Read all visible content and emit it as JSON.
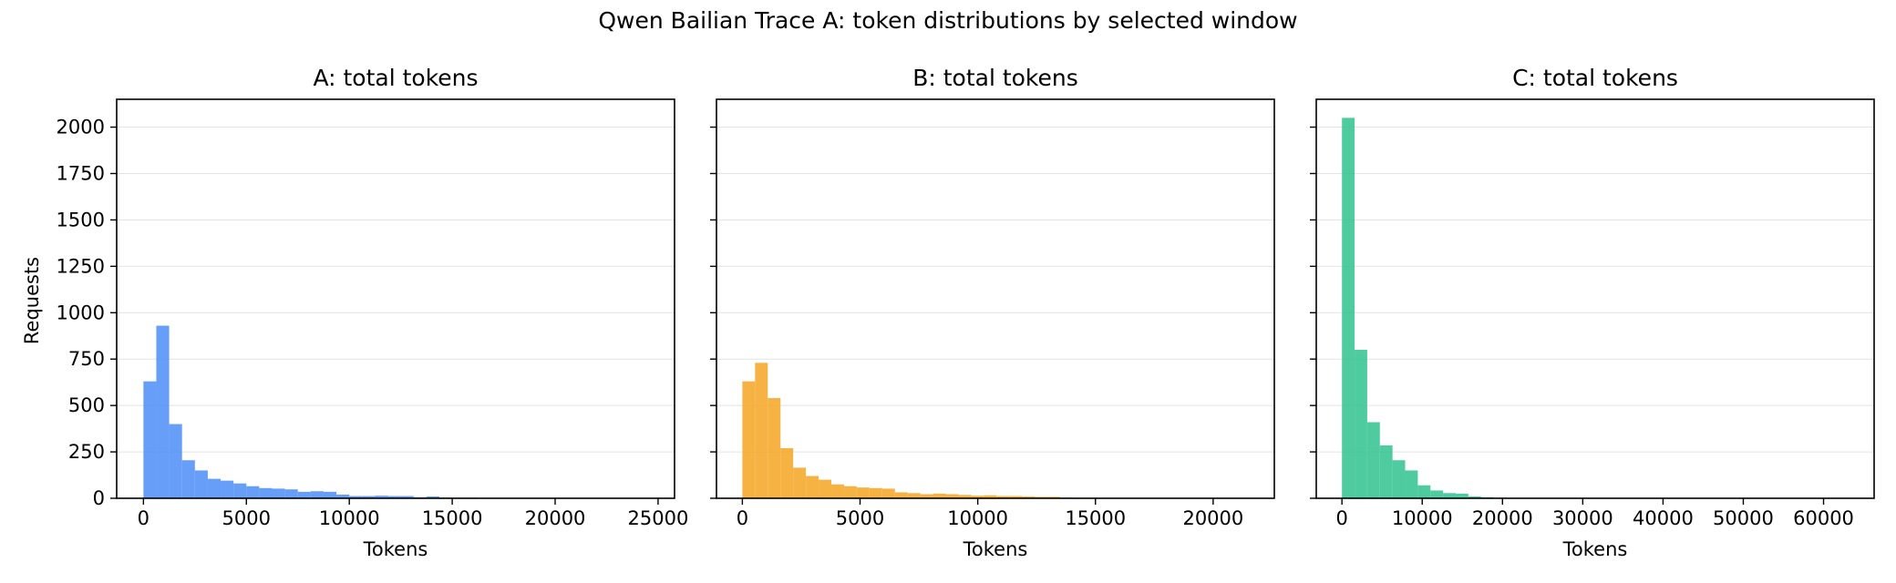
{
  "figure": {
    "title": "Qwen Bailian Trace A: token distributions by selected window",
    "ylabel": "Requests"
  },
  "chart_data": [
    {
      "type": "bar",
      "title": "A: total tokens",
      "xlabel": "Tokens",
      "ylabel": "Requests",
      "color": "#4C8DF6",
      "xlim": [
        -1300,
        25800
      ],
      "ylim": [
        0,
        2150
      ],
      "x_ticks": [
        0,
        5000,
        10000,
        15000,
        20000,
        25000
      ],
      "y_ticks": [
        0,
        250,
        500,
        750,
        1000,
        1250,
        1500,
        1750,
        2000
      ],
      "grid": "horizontal",
      "bin_width": 625,
      "bin_starts": [
        0,
        625,
        1250,
        1875,
        2500,
        3125,
        3750,
        4375,
        5000,
        5625,
        6250,
        6875,
        7500,
        8125,
        8750,
        9375,
        10000,
        10625,
        11250,
        11875,
        12500,
        13125,
        13750,
        14375,
        15000,
        15625,
        16250,
        16875,
        17500,
        18125,
        18750,
        19375,
        20000,
        20625,
        21250,
        21875,
        22500,
        23125,
        23750,
        24375
      ],
      "values": [
        630,
        930,
        400,
        205,
        150,
        105,
        95,
        80,
        65,
        55,
        52,
        48,
        35,
        38,
        35,
        20,
        12,
        12,
        14,
        12,
        12,
        6,
        10,
        4,
        3,
        3,
        2,
        2,
        2,
        2,
        1,
        2,
        1,
        1,
        1,
        1,
        1,
        1,
        1,
        1
      ]
    },
    {
      "type": "bar",
      "title": "B: total tokens",
      "xlabel": "Tokens",
      "color": "#F4A623",
      "xlim": [
        -1100,
        22600
      ],
      "ylim": [
        0,
        2150
      ],
      "x_ticks": [
        0,
        5000,
        10000,
        15000,
        20000
      ],
      "y_ticks": [
        0,
        250,
        500,
        750,
        1000,
        1250,
        1500,
        1750,
        2000
      ],
      "grid": "horizontal",
      "bin_width": 540,
      "bin_starts": [
        0,
        540,
        1080,
        1620,
        2160,
        2700,
        3240,
        3780,
        4320,
        4860,
        5400,
        5940,
        6480,
        7020,
        7560,
        8100,
        8640,
        9180,
        9720,
        10260,
        10800,
        11340,
        11880,
        12420,
        12960,
        13500,
        14040,
        14580,
        15120,
        15660,
        16200,
        16740,
        17280,
        17820,
        18360,
        18900,
        19440,
        19980,
        20520,
        21060
      ],
      "values": [
        630,
        730,
        540,
        270,
        165,
        120,
        100,
        75,
        65,
        58,
        55,
        52,
        32,
        28,
        22,
        25,
        22,
        18,
        14,
        16,
        12,
        12,
        10,
        8,
        8,
        4,
        3,
        3,
        2,
        2,
        2,
        1,
        1,
        1,
        1,
        1,
        1,
        1,
        1,
        1
      ]
    },
    {
      "type": "bar",
      "title": "C: total tokens",
      "xlabel": "Tokens",
      "color": "#2FC38E",
      "xlim": [
        -3200,
        66300
      ],
      "ylim": [
        0,
        2150
      ],
      "x_ticks": [
        0,
        10000,
        20000,
        30000,
        40000,
        50000,
        60000
      ],
      "y_ticks": [
        0,
        250,
        500,
        750,
        1000,
        1250,
        1500,
        1750,
        2000
      ],
      "grid": "horizontal",
      "bin_width": 1575,
      "bin_starts": [
        0,
        1575,
        3150,
        4725,
        6300,
        7875,
        9450,
        11025,
        12600,
        14175,
        15750,
        17325,
        18900,
        20475,
        22050,
        23625,
        25200,
        26775,
        28350,
        29925,
        31500,
        33075,
        34650,
        36225,
        37800,
        39375,
        40950,
        42525,
        44100,
        45675,
        47250,
        48825,
        50400,
        51975,
        53550,
        55125,
        56700,
        58275,
        59850,
        61425
      ],
      "values": [
        2050,
        800,
        410,
        285,
        205,
        150,
        70,
        42,
        28,
        25,
        10,
        6,
        3,
        2,
        2,
        1,
        1,
        1,
        0,
        1,
        0,
        0,
        0,
        0,
        0,
        0,
        0,
        0,
        0,
        0,
        0,
        0,
        0,
        0,
        0,
        0,
        0,
        0,
        0,
        1
      ]
    }
  ]
}
